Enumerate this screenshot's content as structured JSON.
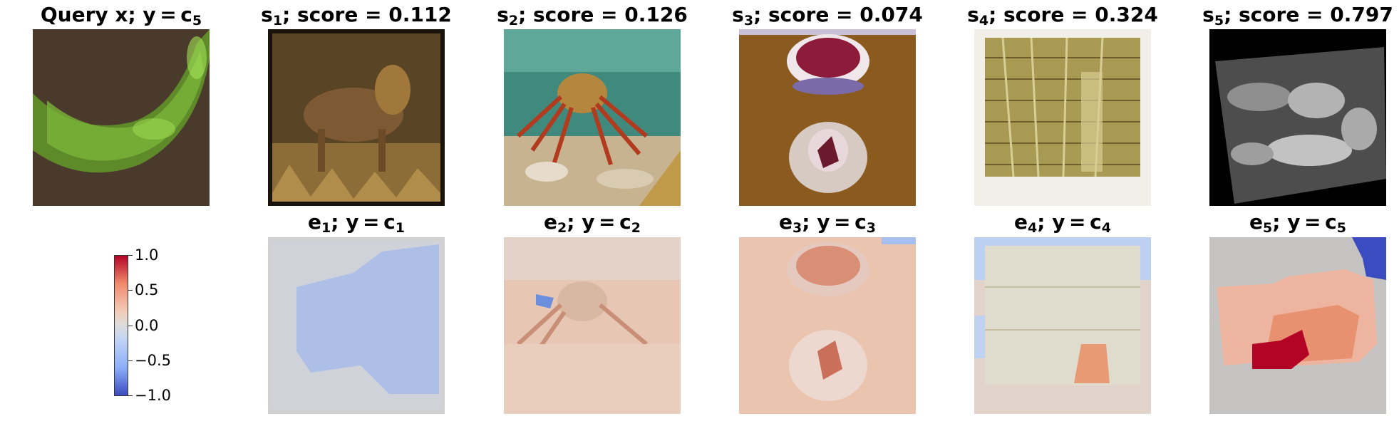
{
  "top_row": [
    {
      "pre": "Query x; y = c",
      "sub": "5",
      "post": "",
      "icon": "green-worm-image"
    },
    {
      "pre": "s",
      "sub": "1",
      "post": "; score = 0.112",
      "icon": "lion-image"
    },
    {
      "pre": "s",
      "sub": "2",
      "post": "; score = 0.126",
      "icon": "crab-aquarium-image"
    },
    {
      "pre": "s",
      "sub": "3",
      "post": "; score = 0.074",
      "icon": "dessert-bowls-image"
    },
    {
      "pre": "s",
      "sub": "4",
      "post": "; score = 0.324",
      "icon": "library-shelves-image"
    },
    {
      "pre": "s",
      "sub": "5",
      "post": "; score = 0.797",
      "icon": "grayscale-cell-image"
    }
  ],
  "bottom_row": [
    {
      "pre": "e",
      "sub": "1",
      "post": "; y = c",
      "sub2": "1",
      "icon": "explanation-heatmap-1"
    },
    {
      "pre": "e",
      "sub": "2",
      "post": "; y = c",
      "sub2": "2",
      "icon": "explanation-heatmap-2"
    },
    {
      "pre": "e",
      "sub": "3",
      "post": "; y = c",
      "sub2": "3",
      "icon": "explanation-heatmap-3"
    },
    {
      "pre": "e",
      "sub": "4",
      "post": "; y = c",
      "sub2": "4",
      "icon": "explanation-heatmap-4"
    },
    {
      "pre": "e",
      "sub": "5",
      "post": "; y = c",
      "sub2": "5",
      "icon": "explanation-heatmap-5"
    }
  ],
  "colorbar": {
    "ticks": [
      "1.0",
      "0.5",
      "0.0",
      "−0.5",
      "−1.0"
    ],
    "colormap": "coolwarm",
    "max_color": "#b40426",
    "mid_color": "#dddcdc",
    "min_color": "#3b4cc0"
  }
}
